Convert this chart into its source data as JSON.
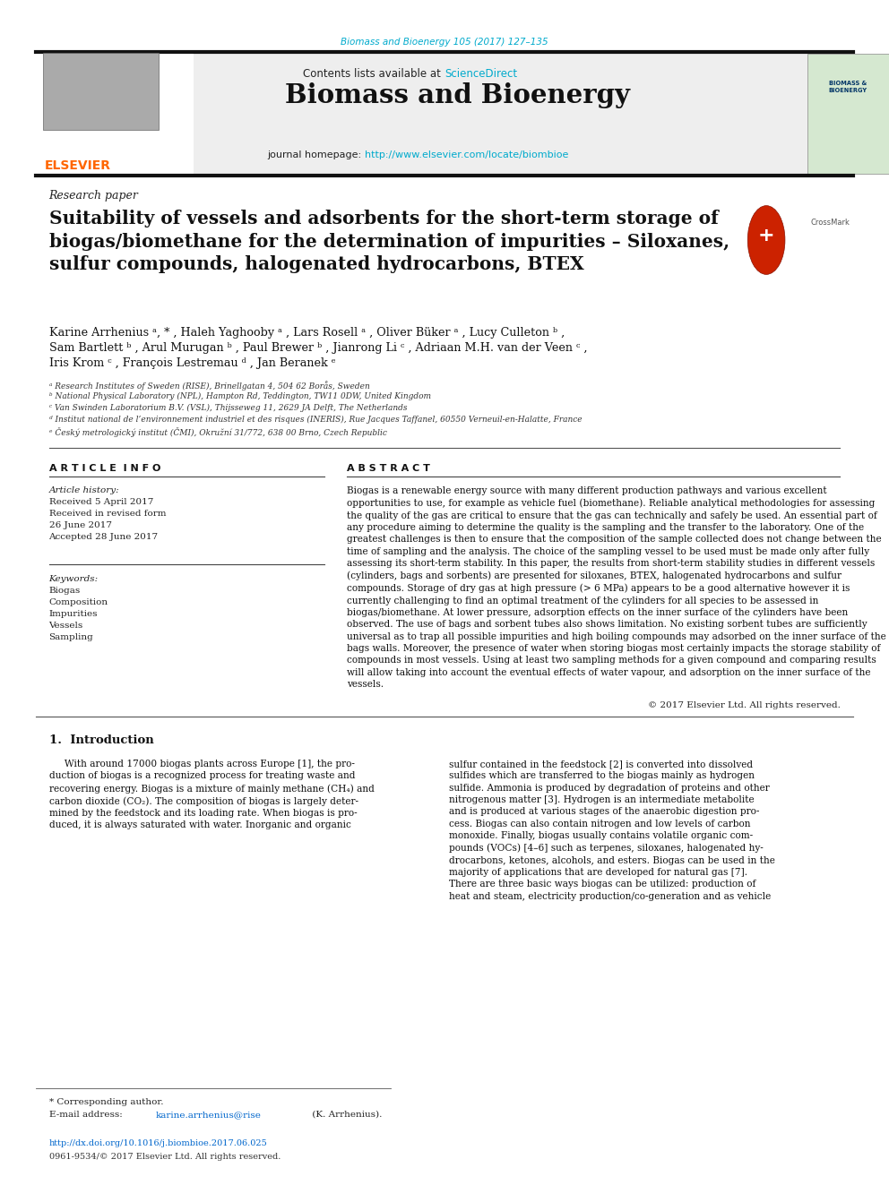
{
  "fig_width": 9.92,
  "fig_height": 13.23,
  "dpi": 100,
  "bg_color": "#ffffff",
  "journal_ref": "Biomass and Bioenergy 105 (2017) 127–135",
  "journal_ref_color": "#00aacc",
  "header_title": "Biomass and Bioenergy",
  "contents_text": "Contents lists available at ",
  "sciencedirect_text": "ScienceDirect",
  "sciencedirect_color": "#00aacc",
  "homepage_text": "journal homepage: ",
  "homepage_url": "http://www.elsevier.com/locate/biombioe",
  "homepage_url_color": "#00aacc",
  "elsevier_color": "#ff6600",
  "elsevier_text": "ELSEVIER",
  "research_paper_label": "Research paper",
  "paper_title": "Suitability of vessels and adsorbents for the short-term storage of\nbiogas/biomethane for the determination of impurities – Siloxanes,\nsulfur compounds, halogenated hydrocarbons, BTEX",
  "authors_line1": "Karine Arrhenius ᵃ, * , Haleh Yaghooby ᵃ , Lars Rosell ᵃ , Oliver Büker ᵃ , Lucy Culleton ᵇ ,",
  "authors_line2": "Sam Bartlett ᵇ , Arul Murugan ᵇ , Paul Brewer ᵇ , Jianrong Li ᶜ , Adriaan M.H. van der Veen ᶜ ,",
  "authors_line3": "Iris Krom ᶜ , François Lestremau ᵈ , Jan Beranek ᵉ",
  "affiliations": [
    "ᵃ Research Institutes of Sweden (RISE), Brinellgatan 4, 504 62 Borås, Sweden",
    "ᵇ National Physical Laboratory (NPL), Hampton Rd, Teddington, TW11 0DW, United Kingdom",
    "ᶜ Van Swinden Laboratorium B.V. (VSL), Thijsseweg 11, 2629 JA Delft, The Netherlands",
    "ᵈ Institut national de l’environnement industriel et des risques (INERIS), Rue Jacques Taffanel, 60550 Verneuil-en-Halatte, France",
    "ᵉ Český metrologický institut (ČMI), Okružní 31/772, 638 00 Brno, Czech Republic"
  ],
  "article_info_title": "A R T I C L E  I N F O",
  "abstract_title": "A B S T R A C T",
  "article_history_label": "Article history:",
  "received": "Received 5 April 2017",
  "received_revised1": "Received in revised form",
  "received_revised2": "26 June 2017",
  "accepted": "Accepted 28 June 2017",
  "keywords_label": "Keywords:",
  "keywords": [
    "Biogas",
    "Composition",
    "Impurities",
    "Vessels",
    "Sampling"
  ],
  "abstract_text": "Biogas is a renewable energy source with many different production pathways and various excellent opportunities to use, for example as vehicle fuel (biomethane). Reliable analytical methodologies for assessing the quality of the gas are critical to ensure that the gas can technically and safely be used. An essential part of any procedure aiming to determine the quality is the sampling and the transfer to the laboratory. One of the greatest challenges is then to ensure that the composition of the sample collected does not change between the time of sampling and the analysis. The choice of the sampling vessel to be used must be made only after fully assessing its short-term stability. In this paper, the results from short-term stability studies in different vessels (cylinders, bags and sorbents) are presented for siloxanes, BTEX, halogenated hydrocarbons and sulfur compounds. Storage of dry gas at high pressure (> 6 MPa) appears to be a good alternative however it is currently challenging to find an optimal treatment of the cylinders for all species to be assessed in biogas/biomethane. At lower pressure, adsorption effects on the inner surface of the cylinders have been observed. The use of bags and sorbent tubes also shows limitation. No existing sorbent tubes are sufficiently universal as to trap all possible impurities and high boiling compounds may adsorbed on the inner surface of the bags walls. Moreover, the presence of water when storing biogas most certainly impacts the storage stability of compounds in most vessels. Using at least two sampling methods for a given compound and comparing results will allow taking into account the eventual effects of water vapour, and adsorption on the inner surface of the vessels.",
  "copyright": "© 2017 Elsevier Ltd. All rights reserved.",
  "intro_title": "1.  Introduction",
  "intro_col1": "     With around 17000 biogas plants across Europe [1], the pro-\nduction of biogas is a recognized process for treating waste and\nrecovering energy. Biogas is a mixture of mainly methane (CH₄) and\ncarbon dioxide (CO₂). The composition of biogas is largely deter-\nmined by the feedstock and its loading rate. When biogas is pro-\nduced, it is always saturated with water. Inorganic and organic",
  "intro_col2": "sulfur contained in the feedstock [2] is converted into dissolved\nsulfides which are transferred to the biogas mainly as hydrogen\nsulfide. Ammonia is produced by degradation of proteins and other\nnitrogenous matter [3]. Hydrogen is an intermediate metabolite\nand is produced at various stages of the anaerobic digestion pro-\ncess. Biogas can also contain nitrogen and low levels of carbon\nmonoxide. Finally, biogas usually contains volatile organic com-\npounds (VOCs) [4–6] such as terpenes, siloxanes, halogenated hy-\ndrocarbons, ketones, alcohols, and esters. Biogas can be used in the\nmajority of applications that are developed for natural gas [7].\nThere are three basic ways biogas can be utilized: production of\nheat and steam, electricity production/co-generation and as vehicle",
  "footnote_corresponding": "* Corresponding author.",
  "footnote_email_label": "E-mail address: ",
  "footnote_email": "karine.arrhenius@rise",
  "footnote_email2": " (K. Arrhenius).",
  "doi_text": "http://dx.doi.org/10.1016/j.biombioe.2017.06.025",
  "issn_text": "0961-9534/© 2017 Elsevier Ltd. All rights reserved."
}
